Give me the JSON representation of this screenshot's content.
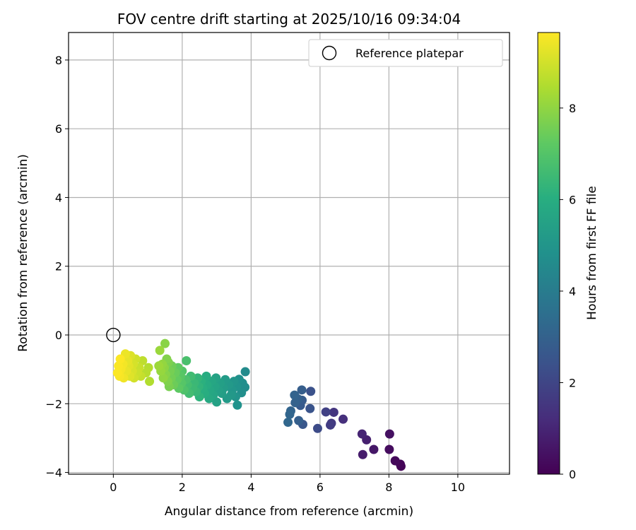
{
  "chart_data": {
    "type": "scatter",
    "title": "FOV centre drift starting at 2025/10/16 09:34:04",
    "xlabel": "Angular distance from reference (arcmin)",
    "ylabel": "Rotation from reference (arcmin)",
    "xlim": [
      -1.3,
      11.5
    ],
    "ylim": [
      -4.05,
      8.8
    ],
    "xticks": [
      0,
      2,
      4,
      6,
      8,
      10
    ],
    "yticks": [
      -4,
      -2,
      0,
      2,
      4,
      6,
      8
    ],
    "grid": true,
    "legend": {
      "position": "top-right",
      "label": "Reference platepar"
    },
    "reference_point": {
      "x": 0,
      "y": 0
    },
    "colorbar": {
      "label": "Hours from first FF file",
      "colormap": "viridis",
      "range": [
        0,
        9.65
      ],
      "ticks": [
        0,
        2,
        4,
        6,
        8
      ]
    },
    "points": [
      {
        "x": 8.35,
        "y": -3.82,
        "h": 0.05
      },
      {
        "x": 8.33,
        "y": -3.76,
        "h": 0.12
      },
      {
        "x": 8.18,
        "y": -3.66,
        "h": 0.2
      },
      {
        "x": 8.01,
        "y": -3.33,
        "h": 0.3
      },
      {
        "x": 8.02,
        "y": -2.88,
        "h": 0.4
      },
      {
        "x": 7.56,
        "y": -3.33,
        "h": 0.6
      },
      {
        "x": 7.24,
        "y": -3.48,
        "h": 0.75
      },
      {
        "x": 7.35,
        "y": -3.05,
        "h": 0.85
      },
      {
        "x": 7.22,
        "y": -2.88,
        "h": 0.95
      },
      {
        "x": 6.67,
        "y": -2.45,
        "h": 1.3
      },
      {
        "x": 6.4,
        "y": -2.25,
        "h": 1.5
      },
      {
        "x": 6.33,
        "y": -2.57,
        "h": 1.6
      },
      {
        "x": 6.3,
        "y": -2.62,
        "h": 1.7
      },
      {
        "x": 6.17,
        "y": -2.24,
        "h": 1.85
      },
      {
        "x": 5.93,
        "y": -2.72,
        "h": 2.2
      },
      {
        "x": 5.73,
        "y": -1.64,
        "h": 2.4
      },
      {
        "x": 5.71,
        "y": -2.14,
        "h": 2.5
      },
      {
        "x": 5.5,
        "y": -2.6,
        "h": 2.6
      },
      {
        "x": 5.43,
        "y": -2.05,
        "h": 2.7
      },
      {
        "x": 5.48,
        "y": -1.9,
        "h": 2.75
      },
      {
        "x": 5.47,
        "y": -1.6,
        "h": 2.85
      },
      {
        "x": 5.38,
        "y": -2.49,
        "h": 2.9
      },
      {
        "x": 5.36,
        "y": -1.86,
        "h": 2.95
      },
      {
        "x": 5.28,
        "y": -1.97,
        "h": 3.0
      },
      {
        "x": 5.26,
        "y": -1.75,
        "h": 3.05
      },
      {
        "x": 5.15,
        "y": -2.21,
        "h": 3.1
      },
      {
        "x": 5.12,
        "y": -2.31,
        "h": 3.15
      },
      {
        "x": 5.07,
        "y": -2.54,
        "h": 3.2
      },
      {
        "x": 3.83,
        "y": -1.07,
        "h": 4.6
      },
      {
        "x": 3.82,
        "y": -1.52,
        "h": 4.65
      },
      {
        "x": 3.75,
        "y": -1.4,
        "h": 4.7
      },
      {
        "x": 3.72,
        "y": -1.68,
        "h": 4.75
      },
      {
        "x": 3.65,
        "y": -1.29,
        "h": 4.8
      },
      {
        "x": 3.6,
        "y": -2.04,
        "h": 4.85
      },
      {
        "x": 3.58,
        "y": -1.5,
        "h": 4.9
      },
      {
        "x": 3.55,
        "y": -1.8,
        "h": 4.95
      },
      {
        "x": 3.5,
        "y": -1.35,
        "h": 5.0
      },
      {
        "x": 3.45,
        "y": -1.6,
        "h": 5.05
      },
      {
        "x": 3.42,
        "y": -1.75,
        "h": 5.1
      },
      {
        "x": 3.35,
        "y": -1.45,
        "h": 5.15
      },
      {
        "x": 3.3,
        "y": -1.85,
        "h": 5.2
      },
      {
        "x": 3.25,
        "y": -1.3,
        "h": 5.25
      },
      {
        "x": 3.2,
        "y": -1.55,
        "h": 5.3
      },
      {
        "x": 3.15,
        "y": -1.7,
        "h": 5.35
      },
      {
        "x": 3.1,
        "y": -1.4,
        "h": 5.4
      },
      {
        "x": 3.05,
        "y": -1.6,
        "h": 5.45
      },
      {
        "x": 3.0,
        "y": -1.95,
        "h": 5.5
      },
      {
        "x": 2.98,
        "y": -1.25,
        "h": 5.55
      },
      {
        "x": 2.95,
        "y": -1.5,
        "h": 5.6
      },
      {
        "x": 2.9,
        "y": -1.75,
        "h": 5.65
      },
      {
        "x": 2.85,
        "y": -1.35,
        "h": 5.7
      },
      {
        "x": 2.8,
        "y": -1.6,
        "h": 5.75
      },
      {
        "x": 2.78,
        "y": -1.85,
        "h": 5.8
      },
      {
        "x": 2.72,
        "y": -1.45,
        "h": 5.9
      },
      {
        "x": 2.7,
        "y": -1.2,
        "h": 5.95
      },
      {
        "x": 2.65,
        "y": -1.7,
        "h": 6.0
      },
      {
        "x": 2.6,
        "y": -1.55,
        "h": 6.05
      },
      {
        "x": 2.55,
        "y": -1.35,
        "h": 6.1
      },
      {
        "x": 2.5,
        "y": -1.8,
        "h": 6.2
      },
      {
        "x": 2.48,
        "y": -1.5,
        "h": 6.25
      },
      {
        "x": 2.45,
        "y": -1.25,
        "h": 6.3
      },
      {
        "x": 2.4,
        "y": -1.65,
        "h": 6.4
      },
      {
        "x": 2.35,
        "y": -1.4,
        "h": 6.45
      },
      {
        "x": 2.3,
        "y": -1.55,
        "h": 6.5
      },
      {
        "x": 2.25,
        "y": -1.2,
        "h": 6.6
      },
      {
        "x": 2.2,
        "y": -1.7,
        "h": 6.65
      },
      {
        "x": 2.15,
        "y": -1.45,
        "h": 6.7
      },
      {
        "x": 2.12,
        "y": -0.75,
        "h": 6.8
      },
      {
        "x": 2.1,
        "y": -1.3,
        "h": 6.85
      },
      {
        "x": 2.05,
        "y": -1.6,
        "h": 6.9
      },
      {
        "x": 2.0,
        "y": -1.05,
        "h": 7.0
      },
      {
        "x": 1.98,
        "y": -1.4,
        "h": 7.05
      },
      {
        "x": 1.95,
        "y": -1.2,
        "h": 7.1
      },
      {
        "x": 1.9,
        "y": -1.55,
        "h": 7.2
      },
      {
        "x": 1.88,
        "y": -0.95,
        "h": 7.25
      },
      {
        "x": 1.85,
        "y": -1.3,
        "h": 7.3
      },
      {
        "x": 1.8,
        "y": -1.1,
        "h": 7.4
      },
      {
        "x": 1.75,
        "y": -1.45,
        "h": 7.45
      },
      {
        "x": 1.7,
        "y": -0.9,
        "h": 7.5
      },
      {
        "x": 1.68,
        "y": -1.25,
        "h": 7.55
      },
      {
        "x": 1.65,
        "y": -1.05,
        "h": 7.6
      },
      {
        "x": 1.62,
        "y": -1.5,
        "h": 7.65
      },
      {
        "x": 1.6,
        "y": -0.8,
        "h": 7.7
      },
      {
        "x": 1.58,
        "y": -1.35,
        "h": 7.75
      },
      {
        "x": 1.55,
        "y": -0.7,
        "h": 7.8
      },
      {
        "x": 1.52,
        "y": -1.15,
        "h": 7.85
      },
      {
        "x": 1.5,
        "y": -0.25,
        "h": 7.9
      },
      {
        "x": 1.48,
        "y": -0.95,
        "h": 7.95
      },
      {
        "x": 1.45,
        "y": -1.25,
        "h": 8.0
      },
      {
        "x": 1.42,
        "y": -0.85,
        "h": 8.05
      },
      {
        "x": 1.38,
        "y": -1.05,
        "h": 8.1
      },
      {
        "x": 1.35,
        "y": -0.45,
        "h": 8.15
      },
      {
        "x": 1.32,
        "y": -0.9,
        "h": 8.2
      },
      {
        "x": 1.05,
        "y": -1.35,
        "h": 8.5
      },
      {
        "x": 1.02,
        "y": -0.95,
        "h": 8.55
      },
      {
        "x": 0.95,
        "y": -1.1,
        "h": 8.6
      },
      {
        "x": 0.85,
        "y": -0.75,
        "h": 8.7
      },
      {
        "x": 0.8,
        "y": -1.2,
        "h": 8.8
      },
      {
        "x": 0.75,
        "y": -0.95,
        "h": 8.85
      },
      {
        "x": 0.7,
        "y": -1.1,
        "h": 8.9
      },
      {
        "x": 0.65,
        "y": -0.7,
        "h": 8.95
      },
      {
        "x": 0.6,
        "y": -1.25,
        "h": 9.0
      },
      {
        "x": 0.58,
        "y": -0.85,
        "h": 9.05
      },
      {
        "x": 0.55,
        "y": -1.05,
        "h": 9.1
      },
      {
        "x": 0.5,
        "y": -0.6,
        "h": 9.15
      },
      {
        "x": 0.48,
        "y": -1.2,
        "h": 9.2
      },
      {
        "x": 0.45,
        "y": -0.9,
        "h": 9.25
      },
      {
        "x": 0.42,
        "y": -0.75,
        "h": 9.3
      },
      {
        "x": 0.38,
        "y": -1.05,
        "h": 9.35
      },
      {
        "x": 0.35,
        "y": -0.55,
        "h": 9.4
      },
      {
        "x": 0.3,
        "y": -1.25,
        "h": 9.45
      },
      {
        "x": 0.28,
        "y": -0.85,
        "h": 9.5
      },
      {
        "x": 0.22,
        "y": -1.0,
        "h": 9.55
      },
      {
        "x": 0.18,
        "y": -1.2,
        "h": 9.58
      },
      {
        "x": 0.15,
        "y": -0.9,
        "h": 9.6
      },
      {
        "x": 0.12,
        "y": -1.1,
        "h": 9.62
      },
      {
        "x": 0.2,
        "y": -0.7,
        "h": 9.64
      }
    ]
  }
}
